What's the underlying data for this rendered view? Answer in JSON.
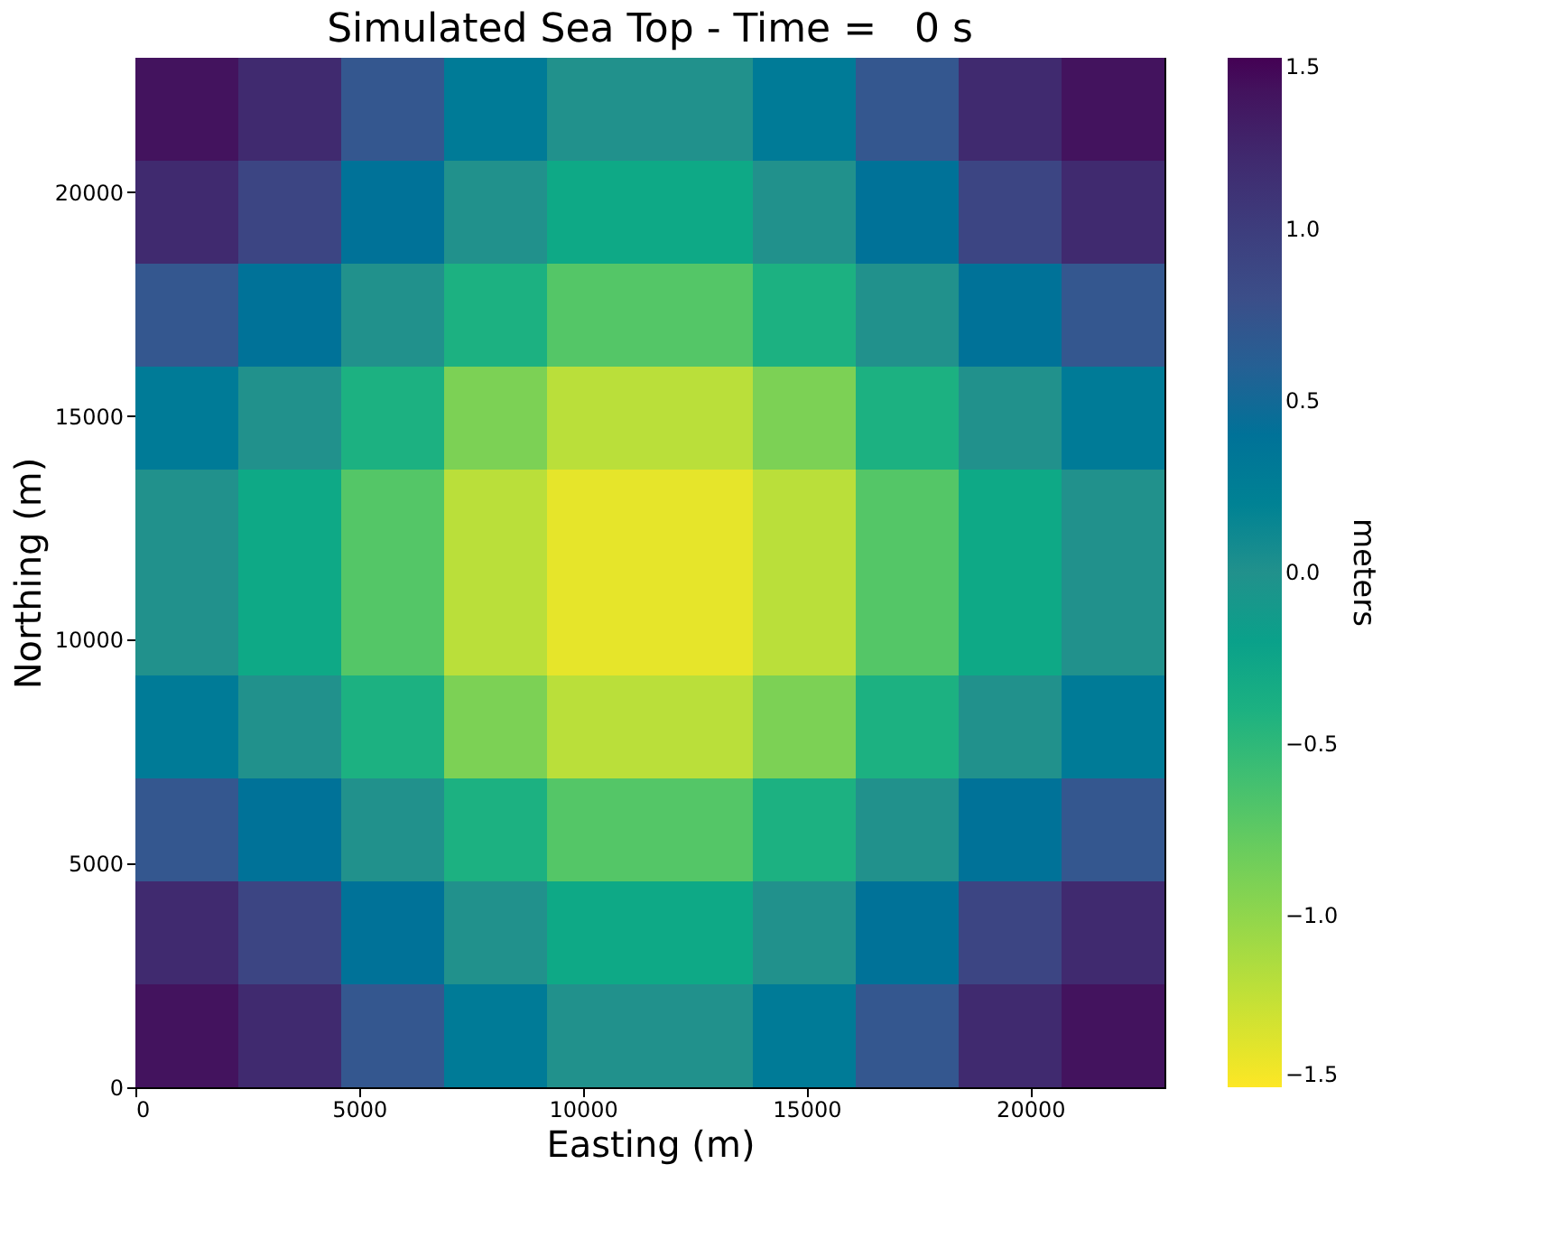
{
  "chart_data": {
    "type": "heatmap",
    "title": "Simulated Sea Top - Time =   0 s",
    "xlabel": "Easting (m)",
    "ylabel": "Northing (m)",
    "clabel": "meters",
    "x": [
      1150,
      3450,
      5750,
      8050,
      10350,
      12650,
      14950,
      17250,
      19550,
      21850
    ],
    "y": [
      21850,
      19550,
      17250,
      14950,
      12650,
      10350,
      8050,
      5750,
      3450,
      1150
    ],
    "cells": [
      [
        1.4,
        1.2,
        0.7,
        0.3,
        0.0,
        0.0,
        0.3,
        0.7,
        1.2,
        1.4
      ],
      [
        1.2,
        0.9,
        0.4,
        0.0,
        -0.3,
        -0.3,
        0.0,
        0.4,
        0.9,
        1.2
      ],
      [
        0.7,
        0.4,
        0.0,
        -0.4,
        -0.7,
        -0.7,
        -0.4,
        0.0,
        0.4,
        0.7
      ],
      [
        0.3,
        0.0,
        -0.4,
        -0.9,
        -1.2,
        -1.2,
        -0.9,
        -0.4,
        0.0,
        0.3
      ],
      [
        0.0,
        -0.3,
        -0.7,
        -1.2,
        -1.4,
        -1.4,
        -1.2,
        -0.7,
        -0.3,
        0.0
      ],
      [
        0.0,
        -0.3,
        -0.7,
        -1.2,
        -1.4,
        -1.4,
        -1.2,
        -0.7,
        -0.3,
        0.0
      ],
      [
        0.3,
        0.0,
        -0.4,
        -0.9,
        -1.2,
        -1.2,
        -0.9,
        -0.4,
        0.0,
        0.3
      ],
      [
        0.7,
        0.4,
        0.0,
        -0.4,
        -0.7,
        -0.7,
        -0.4,
        0.0,
        0.4,
        0.7
      ],
      [
        1.2,
        0.9,
        0.4,
        0.0,
        -0.3,
        -0.3,
        0.0,
        0.4,
        0.9,
        1.2
      ],
      [
        1.4,
        1.2,
        0.7,
        0.3,
        0.0,
        0.0,
        0.3,
        0.7,
        1.2,
        1.4
      ]
    ],
    "colors": [
      "#fde725",
      "#5ec962",
      "#21918c",
      "#3b528b",
      "#440154"
    ],
    "xlim": [
      0,
      23000
    ],
    "ylim": [
      0,
      23000
    ],
    "xticks": [
      0,
      5000,
      10000,
      15000,
      20000
    ],
    "yticks": [
      0,
      5000,
      10000,
      15000,
      20000
    ],
    "clim": [
      -1.5,
      1.5
    ],
    "cticks": [
      {
        "value": -1.5,
        "label": "−1.5"
      },
      {
        "value": -1.0,
        "label": "−1.0"
      },
      {
        "value": -0.5,
        "label": "−0.5"
      },
      {
        "value": 0,
        "label": "0.0"
      },
      {
        "value": 0.5,
        "label": "0.5"
      },
      {
        "value": 1.0,
        "label": "1.0"
      },
      {
        "value": 1.5,
        "label": "1.5"
      }
    ]
  }
}
